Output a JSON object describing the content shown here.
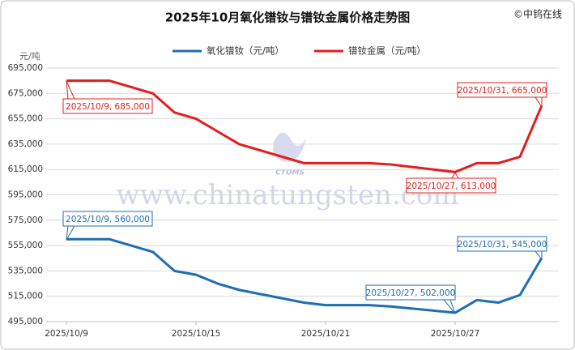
{
  "chart_data": {
    "type": "line",
    "title": "2025年10月氧化镨钕与镨钕金属价格走势图",
    "copyright": "©中钨在线",
    "y_unit": "元/吨",
    "watermark": "www.chinatungsten.com",
    "logo_text": "CTOMS",
    "x": [
      9,
      11,
      13,
      14,
      15,
      16,
      17,
      20,
      21,
      23,
      24,
      27,
      28,
      29,
      30,
      31
    ],
    "xlim": [
      8.06,
      31.8
    ],
    "xticks": [
      {
        "value": 9,
        "label": "2025/10/9"
      },
      {
        "value": 15,
        "label": "2025/10/15"
      },
      {
        "value": 21,
        "label": "2025/10/21"
      },
      {
        "value": 27,
        "label": "2025/10/27"
      }
    ],
    "ylim": [
      495000,
      695000
    ],
    "yticks": [
      {
        "value": 495000,
        "label": "495,000"
      },
      {
        "value": 515000,
        "label": "515,000"
      },
      {
        "value": 535000,
        "label": "535,000"
      },
      {
        "value": 555000,
        "label": "555,000"
      },
      {
        "value": 575000,
        "label": "575,000"
      },
      {
        "value": 595000,
        "label": "595,000"
      },
      {
        "value": 615000,
        "label": "615,000"
      },
      {
        "value": 635000,
        "label": "635,000"
      },
      {
        "value": 655000,
        "label": "655,000"
      },
      {
        "value": 675000,
        "label": "675,000"
      },
      {
        "value": 695000,
        "label": "695,000"
      }
    ],
    "grid": true,
    "series": [
      {
        "name": "氧化镨钕（元/吨）",
        "color": "#1f6db3",
        "values": [
          560000,
          560000,
          550000,
          535000,
          532000,
          525000,
          520000,
          510000,
          508000,
          508000,
          507000,
          502000,
          512000,
          510000,
          516000,
          545000
        ],
        "annotations": [
          "2025/10/9, 560,000",
          "2025/10/27, 502,000",
          "2025/10/31, 545,000"
        ]
      },
      {
        "name": "镨钕金属（元/吨）",
        "color": "#e31d1c",
        "values": [
          685000,
          685000,
          675000,
          660000,
          655000,
          645000,
          635000,
          620000,
          620000,
          620000,
          619000,
          613000,
          620000,
          620000,
          625000,
          665000
        ],
        "annotations": [
          "2025/10/9, 685,000",
          "2025/10/27, 613,000",
          "2025/10/31, 665,000"
        ]
      }
    ]
  }
}
